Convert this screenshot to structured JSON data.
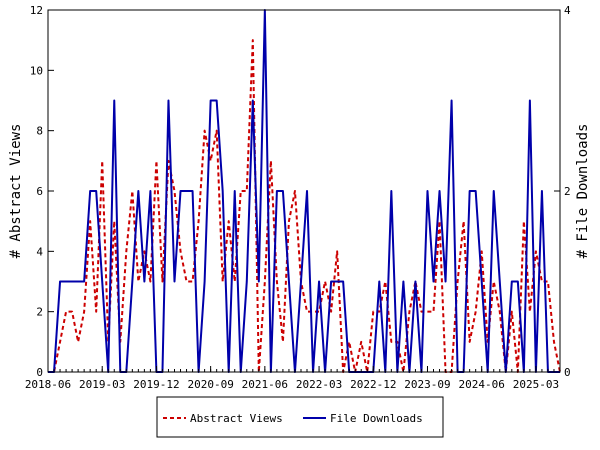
{
  "chart_data": {
    "type": "line",
    "ylabel_left": "# Abstract Views",
    "ylabel_right": "# File Downloads",
    "ylim_left": [
      0,
      12
    ],
    "ylim_right": [
      0,
      4
    ],
    "yticks_left": [
      "0",
      "2",
      "4",
      "6",
      "8",
      "10",
      "12"
    ],
    "yticks_right": [
      "0",
      "2",
      "4"
    ],
    "x_ticks": [
      "2018-06",
      "2019-03",
      "2019-12",
      "2020-09",
      "2021-06",
      "2022-03",
      "2022-12",
      "2023-09",
      "2024-06",
      "2025-03"
    ],
    "x_months": [
      "2018-06",
      "2018-07",
      "2018-08",
      "2018-09",
      "2018-10",
      "2018-11",
      "2018-12",
      "2019-01",
      "2019-02",
      "2019-03",
      "2019-04",
      "2019-05",
      "2019-06",
      "2019-07",
      "2019-08",
      "2019-09",
      "2019-10",
      "2019-11",
      "2019-12",
      "2020-01",
      "2020-02",
      "2020-03",
      "2020-04",
      "2020-05",
      "2020-06",
      "2020-07",
      "2020-08",
      "2020-09",
      "2020-10",
      "2020-11",
      "2020-12",
      "2021-01",
      "2021-02",
      "2021-03",
      "2021-04",
      "2021-05",
      "2021-06",
      "2021-07",
      "2021-08",
      "2021-09",
      "2021-10",
      "2021-11",
      "2021-12",
      "2022-01",
      "2022-02",
      "2022-03",
      "2022-04",
      "2022-05",
      "2022-06",
      "2022-07",
      "2022-08",
      "2022-09",
      "2022-10",
      "2022-11",
      "2022-12",
      "2023-01",
      "2023-02",
      "2023-03",
      "2023-04",
      "2023-05",
      "2023-06",
      "2023-07",
      "2023-08",
      "2023-09",
      "2023-10",
      "2023-11",
      "2023-12",
      "2024-01",
      "2024-02",
      "2024-03",
      "2024-04",
      "2024-05",
      "2024-06",
      "2024-07",
      "2024-08",
      "2024-09",
      "2024-10",
      "2024-11",
      "2024-12",
      "2025-01",
      "2025-02",
      "2025-03",
      "2025-04",
      "2025-05",
      "2025-06",
      "2025-07"
    ],
    "series": [
      {
        "name": "Abstract Views",
        "axis": "left",
        "color": "#cc0000",
        "dash": "dashed",
        "values": [
          0,
          0,
          1,
          2,
          2,
          1,
          2,
          5,
          2,
          7,
          1,
          5,
          1,
          4,
          6,
          3,
          4,
          3,
          7,
          3,
          7,
          6,
          4,
          3,
          3,
          5,
          8,
          7,
          8,
          3,
          5,
          3,
          6,
          6,
          11,
          0,
          3,
          7,
          3,
          1,
          5,
          6,
          3,
          2,
          2,
          2,
          3,
          2,
          4,
          0,
          1,
          0,
          1,
          0,
          2,
          2,
          3,
          1,
          1,
          0,
          2,
          3,
          2,
          2,
          2,
          5,
          0,
          0,
          3,
          5,
          1,
          2,
          4,
          1,
          3,
          2,
          0,
          2,
          0,
          5,
          2,
          4,
          3,
          3,
          1,
          0
        ]
      },
      {
        "name": "File Downloads",
        "axis": "right",
        "color": "#0000aa",
        "dash": "solid",
        "values": [
          0,
          0,
          1,
          1,
          1,
          1,
          1,
          2,
          2,
          1,
          0,
          3,
          0,
          0,
          1,
          2,
          1,
          2,
          0,
          0,
          3,
          1,
          2,
          2,
          2,
          0,
          1,
          3,
          3,
          2,
          0,
          2,
          0,
          1,
          3,
          1,
          4,
          0,
          2,
          2,
          1,
          0,
          1,
          2,
          0,
          1,
          0,
          1,
          1,
          1,
          0,
          0,
          0,
          0,
          0,
          1,
          0,
          2,
          0,
          1,
          0,
          1,
          0,
          2,
          1,
          2,
          1,
          3,
          0,
          0,
          2,
          2,
          1,
          0,
          2,
          1,
          0,
          1,
          1,
          0,
          3,
          0,
          2,
          0,
          0,
          0
        ]
      }
    ],
    "grid": false,
    "legend_position": "bottom"
  }
}
